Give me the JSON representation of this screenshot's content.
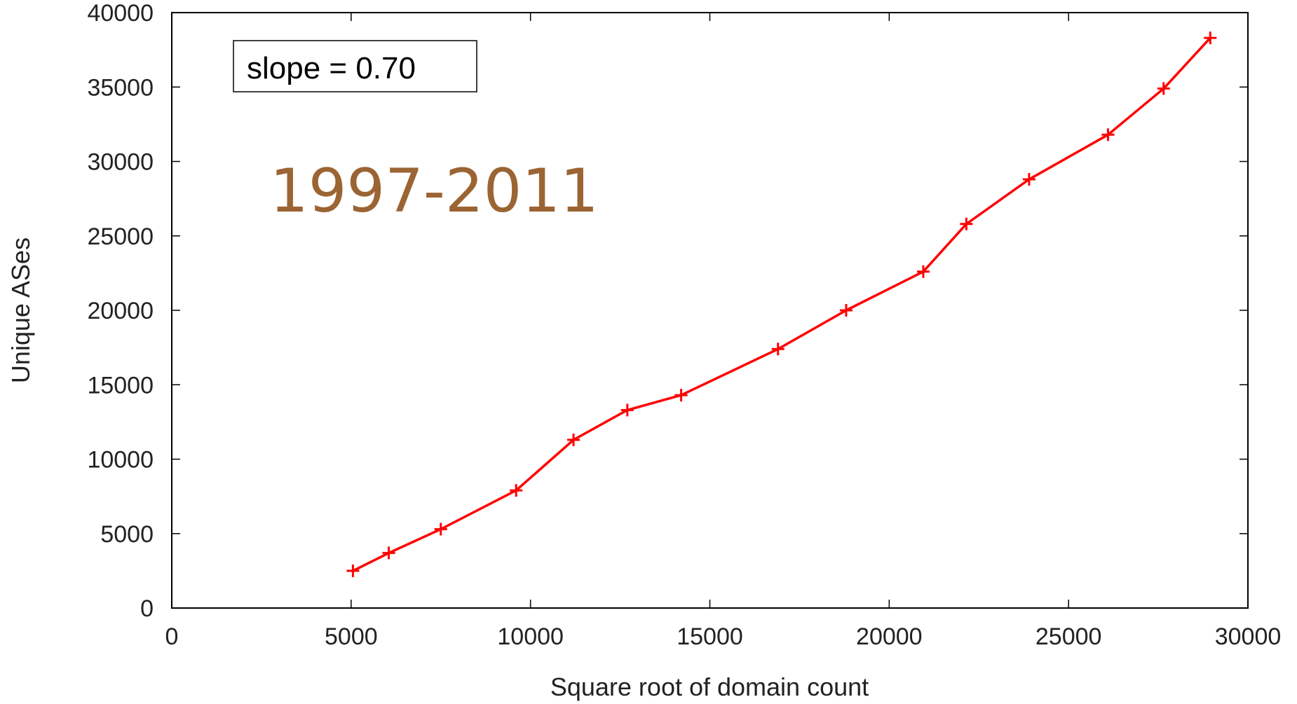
{
  "chart_data": {
    "type": "line",
    "title": "",
    "xlabel": "Square root of domain count",
    "ylabel": "Unique ASes",
    "xlim": [
      0,
      30000
    ],
    "ylim": [
      0,
      40000
    ],
    "x_ticks": [
      0,
      5000,
      10000,
      15000,
      20000,
      25000,
      30000
    ],
    "y_ticks": [
      0,
      5000,
      10000,
      15000,
      20000,
      25000,
      30000,
      35000,
      40000
    ],
    "grid": false,
    "annotations": {
      "slope_label": "slope = 0.70",
      "period_label": "1997-2011"
    },
    "series": [
      {
        "marker": "plus",
        "color": "#ff0000",
        "x": [
          5050,
          6050,
          7500,
          9600,
          11200,
          12700,
          14200,
          16900,
          18800,
          20950,
          22150,
          23900,
          26100,
          27650,
          28950
        ],
        "y": [
          2500,
          3700,
          5300,
          7900,
          11300,
          13300,
          14300,
          17400,
          20000,
          22600,
          25800,
          28800,
          31800,
          34900,
          38300
        ]
      }
    ]
  },
  "colors": {
    "line": "#ff0000",
    "period_label": "#9b6433",
    "axis": "#000000"
  }
}
